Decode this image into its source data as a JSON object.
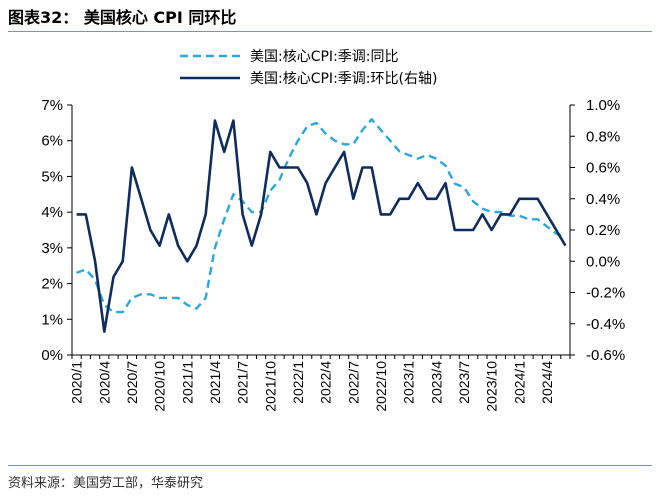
{
  "header": {
    "title": "图表32：  美国核心 CPI 同环比"
  },
  "footer": {
    "source": "资料来源：美国劳工部，华泰研究"
  },
  "colors": {
    "yoy": "#29a8e0",
    "mom": "#0e2c5e",
    "rule": "#7f93b3"
  },
  "chart_data": {
    "type": "line",
    "legend_position": "top-center",
    "grid": false,
    "x": [
      "2020/1",
      "2020/2",
      "2020/3",
      "2020/4",
      "2020/5",
      "2020/6",
      "2020/7",
      "2020/8",
      "2020/9",
      "2020/10",
      "2020/11",
      "2020/12",
      "2021/1",
      "2021/2",
      "2021/3",
      "2021/4",
      "2021/5",
      "2021/6",
      "2021/7",
      "2021/8",
      "2021/9",
      "2021/10",
      "2021/11",
      "2021/12",
      "2022/1",
      "2022/2",
      "2022/3",
      "2022/4",
      "2022/5",
      "2022/6",
      "2022/7",
      "2022/8",
      "2022/9",
      "2022/10",
      "2022/11",
      "2022/12",
      "2023/1",
      "2023/2",
      "2023/3",
      "2023/4",
      "2023/5",
      "2023/6",
      "2023/7",
      "2023/8",
      "2023/9",
      "2023/10",
      "2023/11",
      "2023/12",
      "2024/1",
      "2024/2",
      "2024/3",
      "2024/4",
      "2024/5",
      "2024/6"
    ],
    "x_tick_labels": [
      "2020/1",
      "2020/4",
      "2020/7",
      "2020/10",
      "2021/1",
      "2021/4",
      "2021/7",
      "2021/10",
      "2022/1",
      "2022/4",
      "2022/7",
      "2022/10",
      "2023/1",
      "2023/4",
      "2023/7",
      "2023/10",
      "2024/1",
      "2024/4"
    ],
    "y_left": {
      "ticks": [
        "0%",
        "1%",
        "2%",
        "3%",
        "4%",
        "5%",
        "6%",
        "7%"
      ],
      "range": [
        0,
        7
      ]
    },
    "y_right": {
      "ticks": [
        "-0.6%",
        "-0.4%",
        "-0.2%",
        "0.0%",
        "0.2%",
        "0.4%",
        "0.6%",
        "0.8%",
        "1.0%"
      ],
      "range": [
        -0.6,
        1.0
      ]
    },
    "series": [
      {
        "name": "美国:核心CPI:季调:同比",
        "axis": "left",
        "style": "dashed",
        "values": [
          2.3,
          2.4,
          2.1,
          1.4,
          1.2,
          1.2,
          1.6,
          1.7,
          1.7,
          1.6,
          1.6,
          1.6,
          1.4,
          1.3,
          1.6,
          3.0,
          3.8,
          4.5,
          4.3,
          4.0,
          4.0,
          4.6,
          4.9,
          5.5,
          6.0,
          6.4,
          6.5,
          6.2,
          6.0,
          5.9,
          5.9,
          6.3,
          6.6,
          6.3,
          6.0,
          5.7,
          5.6,
          5.5,
          5.6,
          5.5,
          5.3,
          4.8,
          4.7,
          4.3,
          4.1,
          4.0,
          4.0,
          3.9,
          3.9,
          3.8,
          3.8,
          3.6,
          3.4,
          3.3
        ]
      },
      {
        "name": "美国:核心CPI:季调:环比(右轴)",
        "axis": "right",
        "style": "solid",
        "values": [
          0.3,
          0.3,
          0.0,
          -0.45,
          -0.1,
          0.0,
          0.6,
          0.4,
          0.2,
          0.1,
          0.3,
          0.1,
          0.0,
          0.1,
          0.3,
          0.9,
          0.7,
          0.9,
          0.3,
          0.1,
          0.3,
          0.7,
          0.6,
          0.6,
          0.6,
          0.5,
          0.3,
          0.5,
          0.6,
          0.7,
          0.4,
          0.6,
          0.6,
          0.3,
          0.3,
          0.4,
          0.4,
          0.5,
          0.4,
          0.4,
          0.5,
          0.2,
          0.2,
          0.2,
          0.3,
          0.2,
          0.3,
          0.3,
          0.4,
          0.4,
          0.4,
          0.3,
          0.2,
          0.1
        ]
      }
    ]
  }
}
